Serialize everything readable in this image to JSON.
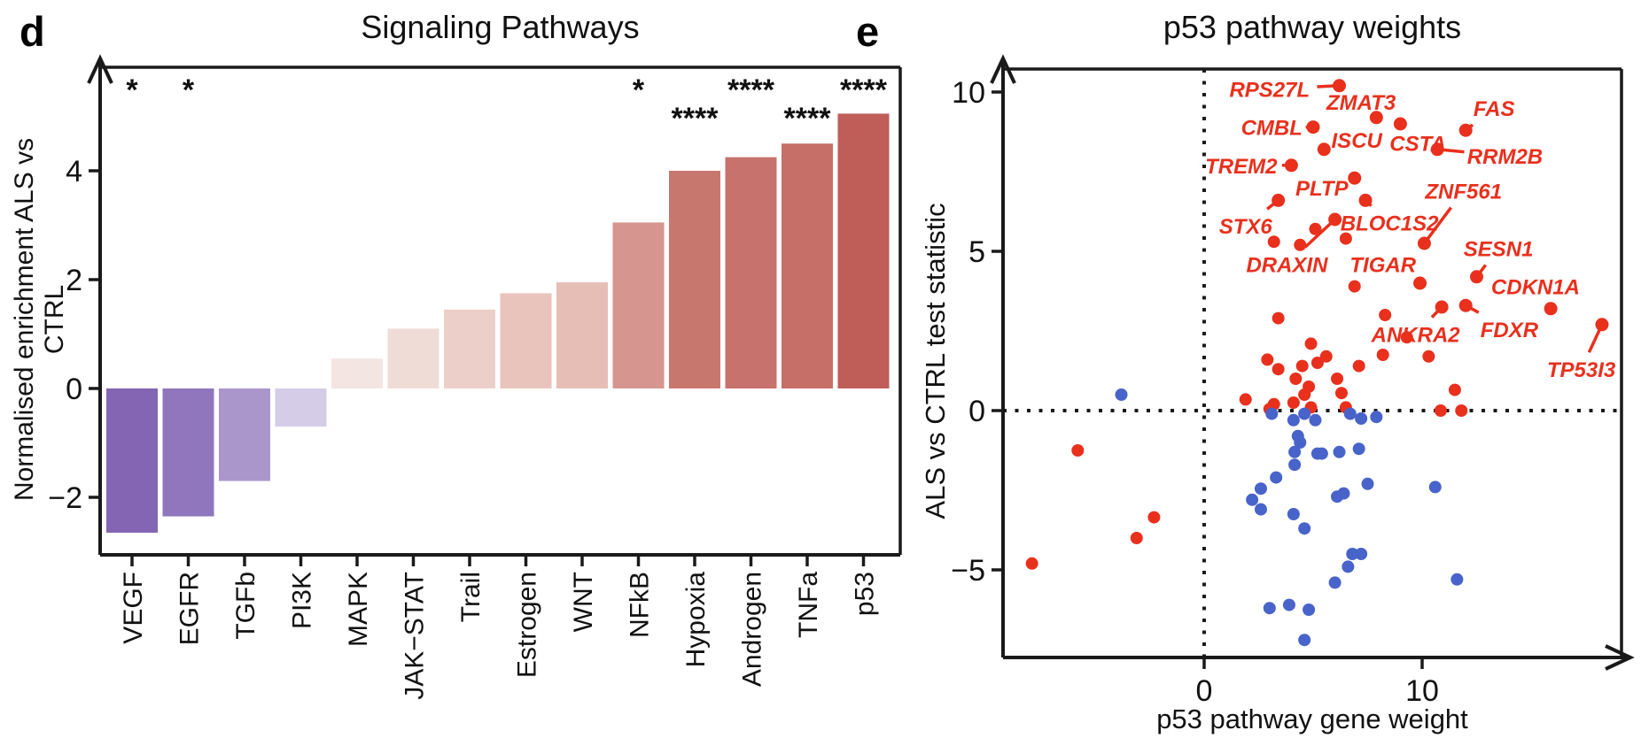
{
  "chart_data": [
    {
      "id": "panel-d",
      "type": "bar",
      "panel_letter": "d",
      "title": "Signaling Pathways",
      "ylabel": "Normalised enrichment ALS vs CTRL",
      "xlabel": "",
      "categories": [
        "VEGF",
        "EGFR",
        "TGFb",
        "PI3K",
        "MAPK",
        "JAK−STAT",
        "Trail",
        "Estrogen",
        "WNT",
        "NFkB",
        "Hypoxia",
        "Androgen",
        "TNFa",
        "p53"
      ],
      "values": [
        -2.65,
        -2.35,
        -1.7,
        -0.7,
        0.55,
        1.1,
        1.45,
        1.75,
        1.95,
        3.05,
        4.0,
        4.25,
        4.5,
        5.05
      ],
      "bar_colors": [
        "#8465b3",
        "#9076bd",
        "#ab96cb",
        "#d5cde7",
        "#f2e5e2",
        "#f0dcd7",
        "#eccfc9",
        "#e9c4bc",
        "#e6beb5",
        "#d6958f",
        "#c8776f",
        "#c7726c",
        "#c66e68",
        "#bf5d59"
      ],
      "significance": [
        "*",
        "*",
        "",
        "",
        "",
        "",
        "",
        "",
        "",
        "*",
        "****",
        "****",
        "****",
        "****"
      ],
      "significance_row": [
        1,
        1,
        0,
        0,
        0,
        0,
        0,
        0,
        0,
        1,
        2,
        1,
        2,
        1
      ],
      "yticks": [
        4,
        2,
        0,
        -2
      ],
      "ylim": [
        -3.1,
        5.9
      ],
      "grid": false
    },
    {
      "id": "panel-e",
      "type": "scatter",
      "panel_letter": "e",
      "title": "p53 pathway weights",
      "xlabel": "p53 pathway gene weight",
      "ylabel": "ALS vs CTRL test statistic",
      "xticks": [
        0,
        10
      ],
      "yticks": [
        10,
        5,
        0,
        -5
      ],
      "xlim": [
        -9.2,
        19.8
      ],
      "ylim": [
        -7.8,
        10.7
      ],
      "grid": false,
      "reference_lines": {
        "x": 0,
        "y": 0,
        "style": "dotted"
      },
      "point_colors": {
        "red": "#e8301d",
        "blue": "#4863ca"
      },
      "label_color": "#e8301d",
      "labeled_genes": [
        {
          "name": "RPS27L",
          "x": 6.2,
          "y": 10.2,
          "lx": 3.0,
          "ly": 10.1
        },
        {
          "name": "ZMAT3",
          "x": 7.9,
          "y": 9.2,
          "lx": 7.2,
          "ly": 9.7
        },
        {
          "name": "FAS",
          "x": 12.0,
          "y": 8.8,
          "lx": 13.3,
          "ly": 9.5
        },
        {
          "name": "CMBL",
          "x": 5.0,
          "y": 8.9,
          "lx": 3.1,
          "ly": 8.9
        },
        {
          "name": "ISCU",
          "x": 5.5,
          "y": 8.2,
          "lx": 7.0,
          "ly": 8.5
        },
        {
          "name": "CSTA",
          "x": 9.0,
          "y": 9.0,
          "lx": 9.8,
          "ly": 8.4
        },
        {
          "name": "RRM2B",
          "x": 10.7,
          "y": 8.2,
          "lx": 13.8,
          "ly": 8.0
        },
        {
          "name": "TREM2",
          "x": 4.0,
          "y": 7.7,
          "lx": 1.7,
          "ly": 7.7
        },
        {
          "name": "PLTP",
          "x": 6.9,
          "y": 7.3,
          "lx": 5.4,
          "ly": 7.0
        },
        {
          "name": "ZNF561",
          "x": 10.1,
          "y": 5.25,
          "lx": 11.9,
          "ly": 6.9
        },
        {
          "name": "STX6",
          "x": 3.4,
          "y": 6.6,
          "lx": 1.9,
          "ly": 5.8
        },
        {
          "name": "BLOC1S2",
          "x": 7.4,
          "y": 6.6,
          "lx": 8.5,
          "ly": 5.9
        },
        {
          "name": "DRAXIN",
          "x": 6.0,
          "y": 6.0,
          "lx": 3.8,
          "ly": 4.6
        },
        {
          "name": "TIGAR",
          "x": 9.9,
          "y": 4.0,
          "lx": 8.2,
          "ly": 4.6
        },
        {
          "name": "SESN1",
          "x": 12.5,
          "y": 4.2,
          "lx": 13.5,
          "ly": 5.1
        },
        {
          "name": "ANKRA2",
          "x": 10.9,
          "y": 3.25,
          "lx": 9.7,
          "ly": 2.4
        },
        {
          "name": "FDXR",
          "x": 12.0,
          "y": 3.3,
          "lx": 14.0,
          "ly": 2.55
        },
        {
          "name": "CDKN1A",
          "x": 15.9,
          "y": 3.2,
          "lx": 15.2,
          "ly": 3.9
        },
        {
          "name": "TP53I3",
          "x": 18.25,
          "y": 2.7,
          "lx": 17.3,
          "ly": 1.3
        }
      ],
      "red_points": [
        [
          3.2,
          5.3
        ],
        [
          4.4,
          5.2
        ],
        [
          5.1,
          5.7
        ],
        [
          6.5,
          5.4
        ],
        [
          6.9,
          3.9
        ],
        [
          3.4,
          2.9
        ],
        [
          8.3,
          3.0
        ],
        [
          9.3,
          2.3
        ],
        [
          4.9,
          2.1
        ],
        [
          8.2,
          1.75
        ],
        [
          10.3,
          1.7
        ],
        [
          2.9,
          1.6
        ],
        [
          3.4,
          1.3
        ],
        [
          4.5,
          1.4
        ],
        [
          5.2,
          1.5
        ],
        [
          5.6,
          1.7
        ],
        [
          7.1,
          1.4
        ],
        [
          4.2,
          1.0
        ],
        [
          6.1,
          1.0
        ],
        [
          4.8,
          0.75
        ],
        [
          4.6,
          0.5
        ],
        [
          6.3,
          0.55
        ],
        [
          11.5,
          0.65
        ],
        [
          1.9,
          0.35
        ],
        [
          3.2,
          0.2
        ],
        [
          3.0,
          0.05
        ],
        [
          4.1,
          0.25
        ],
        [
          4.9,
          0.1
        ],
        [
          6.5,
          0.1
        ],
        [
          10.85,
          0.0
        ],
        [
          11.8,
          0.0
        ],
        [
          -7.9,
          -4.8
        ],
        [
          -5.8,
          -1.25
        ],
        [
          -3.1,
          -4.0
        ],
        [
          -2.3,
          -3.35
        ]
      ],
      "blue_points": [
        [
          -3.8,
          0.5
        ],
        [
          3.1,
          -0.1
        ],
        [
          4.6,
          -0.1
        ],
        [
          6.7,
          -0.1
        ],
        [
          7.2,
          -0.25
        ],
        [
          7.9,
          -0.2
        ],
        [
          4.1,
          -0.3
        ],
        [
          5.1,
          -0.3
        ],
        [
          4.3,
          -0.8
        ],
        [
          4.4,
          -1.0
        ],
        [
          4.15,
          -1.3
        ],
        [
          5.2,
          -1.35
        ],
        [
          5.4,
          -1.35
        ],
        [
          6.2,
          -1.3
        ],
        [
          7.1,
          -1.2
        ],
        [
          4.15,
          -1.7
        ],
        [
          3.3,
          -2.1
        ],
        [
          2.6,
          -2.45
        ],
        [
          2.2,
          -2.8
        ],
        [
          2.6,
          -3.1
        ],
        [
          7.5,
          -2.3
        ],
        [
          10.6,
          -2.4
        ],
        [
          6.1,
          -2.7
        ],
        [
          6.4,
          -2.6
        ],
        [
          4.1,
          -3.25
        ],
        [
          4.6,
          -3.7
        ],
        [
          6.8,
          -4.5
        ],
        [
          7.2,
          -4.5
        ],
        [
          6.6,
          -4.9
        ],
        [
          6.0,
          -5.4
        ],
        [
          11.6,
          -5.3
        ],
        [
          3.0,
          -6.2
        ],
        [
          3.9,
          -6.1
        ],
        [
          4.8,
          -6.25
        ],
        [
          4.6,
          -7.2
        ]
      ]
    }
  ]
}
